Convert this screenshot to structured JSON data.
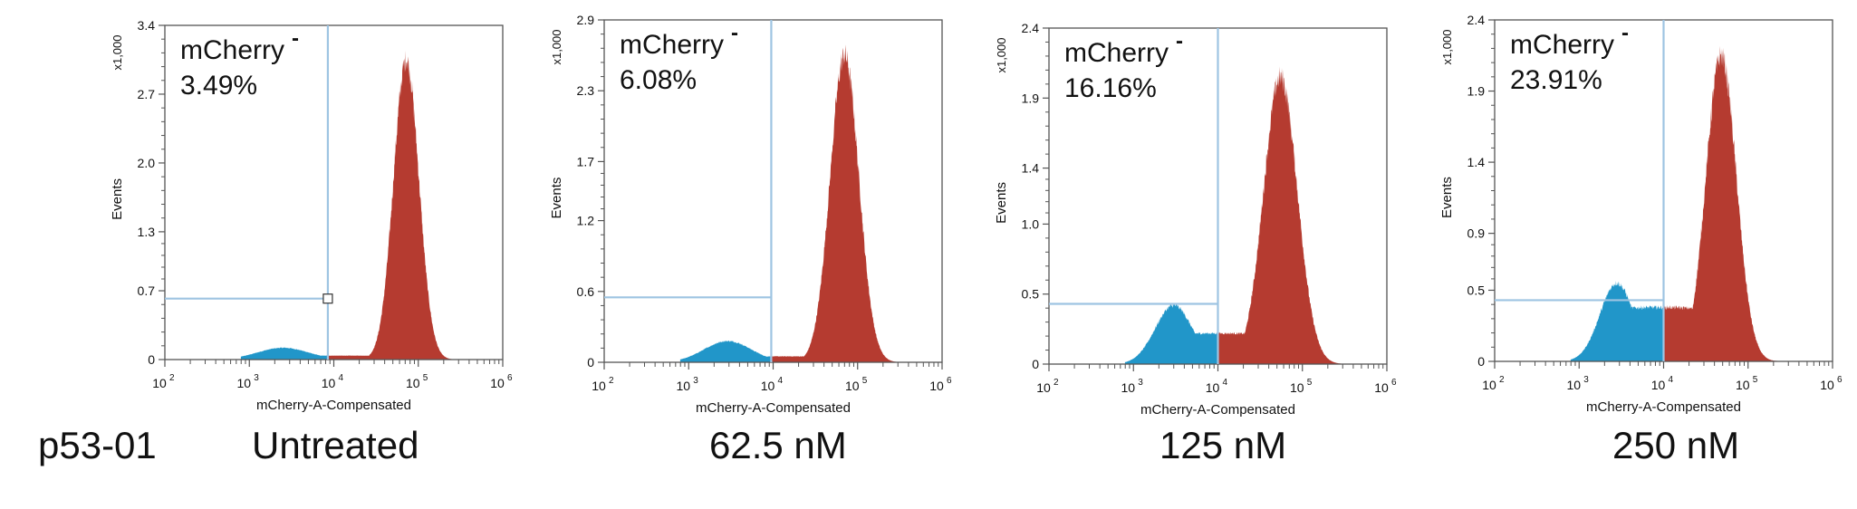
{
  "figure": {
    "row_label": "p53-01",
    "colors": {
      "negative_fill": "#2196c9",
      "positive_fill": "#b53b30",
      "gate_line": "#9ec4e2",
      "axis": "#555555",
      "text": "#111111"
    }
  },
  "chart_data": [
    {
      "type": "histogram",
      "condition": "Untreated",
      "gate_label": "mCherry",
      "gate_superscript": "-",
      "gate_value": "3.49%",
      "xlabel": "mCherry-A-Compensated",
      "ylabel": "Events",
      "y_multiplier": "x1,000",
      "xscale": "log",
      "xlim": [
        100,
        1000000
      ],
      "ylim": [
        0,
        3.4
      ],
      "x_tick_labels": [
        "10",
        "10",
        "10",
        "10",
        "10"
      ],
      "x_tick_exponents": [
        "2",
        "3",
        "4",
        "5",
        "6"
      ],
      "y_ticks": [
        0,
        0.7,
        1.3,
        2.0,
        2.7,
        3.4
      ],
      "y_tick_labels": [
        "0",
        "0.7",
        "1.3",
        "2.0",
        "2.7",
        "3.4"
      ],
      "gate_threshold_x": 8500,
      "gate_level_y": 0.62,
      "gate_handle": true,
      "negative_peak": {
        "center_x": 2500,
        "height": 0.12,
        "width_decades": 0.3
      },
      "positive_peak": {
        "center_x": 72000,
        "height": 3.05,
        "width_decades": 0.15
      },
      "baseline": 0.04
    },
    {
      "type": "histogram",
      "condition": "62.5 nM",
      "gate_label": "mCherry",
      "gate_superscript": "-",
      "gate_value": "6.08%",
      "xlabel": "mCherry-A-Compensated",
      "ylabel": "Events",
      "y_multiplier": "x1,000",
      "xscale": "log",
      "xlim": [
        100,
        1000000
      ],
      "ylim": [
        0,
        2.9
      ],
      "x_tick_labels": [
        "10",
        "10",
        "10",
        "10",
        "10"
      ],
      "x_tick_exponents": [
        "2",
        "3",
        "4",
        "5",
        "6"
      ],
      "y_ticks": [
        0,
        0.6,
        1.2,
        1.7,
        2.3,
        2.9
      ],
      "y_tick_labels": [
        "0",
        "0.6",
        "1.2",
        "1.7",
        "2.3",
        "2.9"
      ],
      "gate_threshold_x": 9500,
      "gate_level_y": 0.55,
      "gate_handle": false,
      "negative_peak": {
        "center_x": 2900,
        "height": 0.18,
        "width_decades": 0.28
      },
      "positive_peak": {
        "center_x": 70000,
        "height": 2.6,
        "width_decades": 0.17
      },
      "baseline": 0.05
    },
    {
      "type": "histogram",
      "condition": "125 nM",
      "gate_label": "mCherry",
      "gate_superscript": "-",
      "gate_value": "16.16%",
      "xlabel": "mCherry-A-Compensated",
      "ylabel": "Events",
      "y_multiplier": "x1,000",
      "xscale": "log",
      "xlim": [
        100,
        1000000
      ],
      "ylim": [
        0,
        2.4
      ],
      "x_tick_labels": [
        "10",
        "10",
        "10",
        "10",
        "10"
      ],
      "x_tick_exponents": [
        "2",
        "3",
        "4",
        "5",
        "6"
      ],
      "y_ticks": [
        0,
        0.5,
        1.0,
        1.4,
        1.9,
        2.4
      ],
      "y_tick_labels": [
        "0",
        "0.5",
        "1.0",
        "1.4",
        "1.9",
        "2.4"
      ],
      "gate_threshold_x": 10000,
      "gate_level_y": 0.43,
      "gate_handle": false,
      "negative_peak": {
        "center_x": 3000,
        "height": 0.42,
        "width_decades": 0.22
      },
      "positive_peak": {
        "center_x": 55000,
        "height": 2.05,
        "width_decades": 0.2
      },
      "baseline": 0.22
    },
    {
      "type": "histogram",
      "condition": "250 nM",
      "gate_label": "mCherry",
      "gate_superscript": "-",
      "gate_value": "23.91%",
      "xlabel": "mCherry-A-Compensated",
      "ylabel": "Events",
      "y_multiplier": "x1,000",
      "xscale": "log",
      "xlim": [
        100,
        1000000
      ],
      "ylim": [
        0,
        2.4
      ],
      "x_tick_labels": [
        "10",
        "10",
        "10",
        "10",
        "10"
      ],
      "x_tick_exponents": [
        "2",
        "3",
        "4",
        "5",
        "6"
      ],
      "y_ticks": [
        0,
        0.5,
        0.9,
        1.4,
        1.9,
        2.4
      ],
      "y_tick_labels": [
        "0",
        "0.5",
        "0.9",
        "1.4",
        "1.9",
        "2.4"
      ],
      "gate_threshold_x": 10000,
      "gate_level_y": 0.43,
      "gate_handle": false,
      "negative_peak": {
        "center_x": 2800,
        "height": 0.55,
        "width_decades": 0.2
      },
      "positive_peak": {
        "center_x": 48000,
        "height": 2.15,
        "width_decades": 0.18
      },
      "baseline": 0.38
    }
  ]
}
